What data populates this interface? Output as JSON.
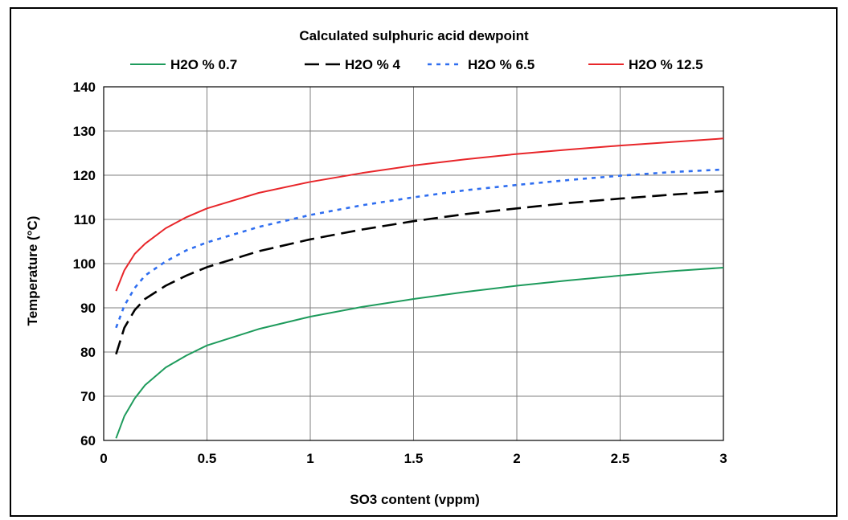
{
  "chart_data": {
    "type": "line",
    "title": "Calculated sulphuric acid dewpoint",
    "xlabel": "SO3 content (vppm)",
    "ylabel": "Temperature (°C)",
    "xlim": [
      0,
      3
    ],
    "ylim": [
      60,
      140
    ],
    "x_ticks": [
      {
        "value": 0,
        "label": "0"
      },
      {
        "value": 0.5,
        "label": "0.5"
      },
      {
        "value": 1,
        "label": "1"
      },
      {
        "value": 1.5,
        "label": "1.5"
      },
      {
        "value": 2,
        "label": "2"
      },
      {
        "value": 2.5,
        "label": "2.5"
      },
      {
        "value": 3,
        "label": "3"
      }
    ],
    "y_ticks": [
      {
        "value": 60,
        "label": "60"
      },
      {
        "value": 70,
        "label": "70"
      },
      {
        "value": 80,
        "label": "80"
      },
      {
        "value": 90,
        "label": "90"
      },
      {
        "value": 100,
        "label": "100"
      },
      {
        "value": 110,
        "label": "110"
      },
      {
        "value": 120,
        "label": "120"
      },
      {
        "value": 130,
        "label": "130"
      },
      {
        "value": 140,
        "label": "140"
      }
    ],
    "grid": true,
    "legend_position": "top",
    "series": [
      {
        "name": "H2O % 0.7",
        "color": "#1e9b5c",
        "style": "solid",
        "points": [
          [
            0.06,
            60.5
          ],
          [
            0.1,
            65.5
          ],
          [
            0.15,
            69.5
          ],
          [
            0.2,
            72.5
          ],
          [
            0.3,
            76.5
          ],
          [
            0.4,
            79.2
          ],
          [
            0.5,
            81.5
          ],
          [
            0.75,
            85.2
          ],
          [
            1.0,
            88.0
          ],
          [
            1.25,
            90.2
          ],
          [
            1.5,
            92.0
          ],
          [
            1.75,
            93.6
          ],
          [
            2.0,
            95.0
          ],
          [
            2.25,
            96.2
          ],
          [
            2.5,
            97.3
          ],
          [
            2.75,
            98.3
          ],
          [
            3.0,
            99.1
          ]
        ]
      },
      {
        "name": "H2O % 4",
        "color": "#000000",
        "style": "dashed",
        "points": [
          [
            0.06,
            79.5
          ],
          [
            0.1,
            85.5
          ],
          [
            0.15,
            89.5
          ],
          [
            0.2,
            92.0
          ],
          [
            0.3,
            95.0
          ],
          [
            0.4,
            97.3
          ],
          [
            0.5,
            99.2
          ],
          [
            0.75,
            102.8
          ],
          [
            1.0,
            105.5
          ],
          [
            1.25,
            107.7
          ],
          [
            1.5,
            109.6
          ],
          [
            1.75,
            111.2
          ],
          [
            2.0,
            112.5
          ],
          [
            2.25,
            113.7
          ],
          [
            2.5,
            114.7
          ],
          [
            2.75,
            115.6
          ],
          [
            3.0,
            116.4
          ]
        ]
      },
      {
        "name": "H2O % 6.5",
        "color": "#2f6ef0",
        "style": "dotted",
        "points": [
          [
            0.06,
            85.5
          ],
          [
            0.1,
            90.5
          ],
          [
            0.15,
            94.5
          ],
          [
            0.2,
            97.3
          ],
          [
            0.3,
            100.5
          ],
          [
            0.4,
            103.0
          ],
          [
            0.5,
            104.8
          ],
          [
            0.75,
            108.3
          ],
          [
            1.0,
            111.0
          ],
          [
            1.25,
            113.2
          ],
          [
            1.5,
            115.0
          ],
          [
            1.75,
            116.6
          ],
          [
            2.0,
            117.8
          ],
          [
            2.25,
            118.9
          ],
          [
            2.5,
            119.9
          ],
          [
            2.75,
            120.7
          ],
          [
            3.0,
            121.3
          ]
        ]
      },
      {
        "name": "H2O % 12.5",
        "color": "#e8262a",
        "style": "solid",
        "points": [
          [
            0.06,
            93.8
          ],
          [
            0.1,
            98.5
          ],
          [
            0.15,
            102.2
          ],
          [
            0.2,
            104.5
          ],
          [
            0.3,
            108.0
          ],
          [
            0.4,
            110.5
          ],
          [
            0.5,
            112.5
          ],
          [
            0.75,
            116.0
          ],
          [
            1.0,
            118.5
          ],
          [
            1.25,
            120.5
          ],
          [
            1.5,
            122.2
          ],
          [
            1.75,
            123.6
          ],
          [
            2.0,
            124.8
          ],
          [
            2.25,
            125.8
          ],
          [
            2.5,
            126.7
          ],
          [
            2.75,
            127.5
          ],
          [
            3.0,
            128.3
          ]
        ]
      }
    ]
  }
}
